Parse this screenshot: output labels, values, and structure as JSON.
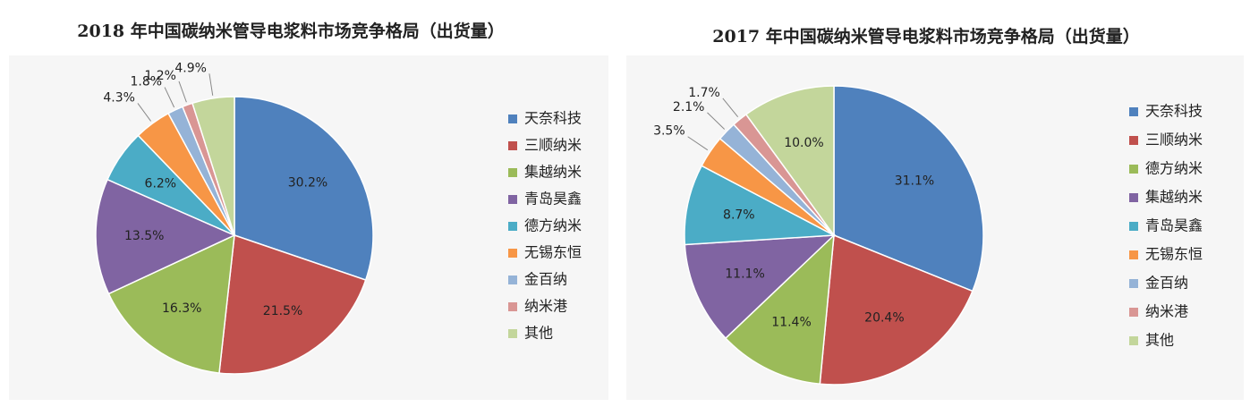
{
  "chart_data": [
    {
      "type": "pie",
      "title": "2018 年中国碳纳米管导电浆料市场竞争格局（出货量）",
      "categories": [
        "天奈科技",
        "三顺纳米",
        "集越纳米",
        "青岛昊鑫",
        "德方纳米",
        "无锡东恒",
        "金百纳",
        "纳米港",
        "其他"
      ],
      "values": [
        30.2,
        21.5,
        16.3,
        13.5,
        6.2,
        4.3,
        1.8,
        1.2,
        4.9
      ],
      "value_labels": [
        "30.2%",
        "21.5%",
        "16.3%",
        "13.5%",
        "6.2%",
        "4.3%",
        "1.8%",
        "1.2%",
        "4.9%"
      ],
      "colors": [
        "#4f81bd",
        "#c0504d",
        "#9bbb59",
        "#8064a2",
        "#4bacc6",
        "#f79646",
        "#95b3d7",
        "#d99694",
        "#c3d69b"
      ],
      "legend": "right"
    },
    {
      "type": "pie",
      "title": "2017 年中国碳纳米管导电浆料市场竞争格局（出货量）",
      "categories": [
        "天奈科技",
        "三顺纳米",
        "德方纳米",
        "集越纳米",
        "青岛昊鑫",
        "无锡东恒",
        "金百纳",
        "纳米港",
        "其他"
      ],
      "values": [
        31.1,
        20.4,
        11.4,
        11.1,
        8.7,
        3.5,
        2.1,
        1.7,
        10.0
      ],
      "value_labels": [
        "31.1%",
        "20.4%",
        "11.4%",
        "11.1%",
        "8.7%",
        "3.5%",
        "2.1%",
        "1.7%",
        "10.0%"
      ],
      "colors": [
        "#4f81bd",
        "#c0504d",
        "#9bbb59",
        "#8064a2",
        "#4bacc6",
        "#f79646",
        "#95b3d7",
        "#d99694",
        "#c3d69b"
      ],
      "legend": "right"
    }
  ]
}
